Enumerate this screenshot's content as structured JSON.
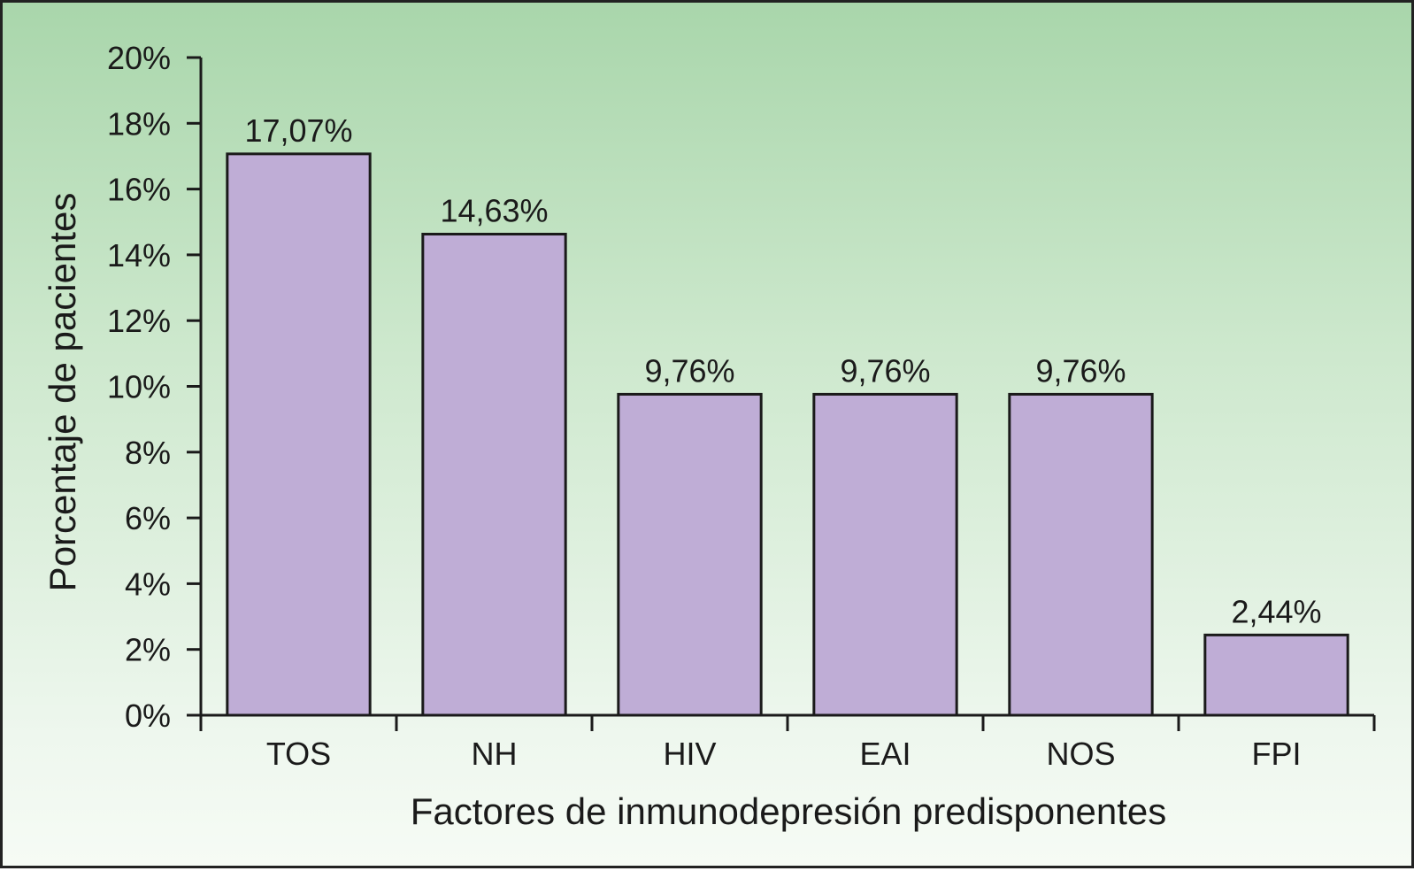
{
  "chart_data": {
    "type": "bar",
    "title": "",
    "xlabel": "Factores de inmunodepresión predisponentes",
    "ylabel": "Porcentaje de pacientes",
    "categories": [
      "TOS",
      "NH",
      "HIV",
      "EAI",
      "NOS",
      "FPI"
    ],
    "values": [
      17.07,
      14.63,
      9.76,
      9.76,
      9.76,
      2.44
    ],
    "value_labels": [
      "17,07%",
      "14,63%",
      "9,76%",
      "9,76%",
      "9,76%",
      "2,44%"
    ],
    "ylim": [
      0,
      20
    ],
    "yticks": [
      0,
      2,
      4,
      6,
      8,
      10,
      12,
      14,
      16,
      18,
      20
    ],
    "ytick_labels": [
      "0%",
      "2%",
      "4%",
      "6%",
      "8%",
      "10%",
      "12%",
      "14%",
      "16%",
      "18%",
      "20%"
    ],
    "grid": false,
    "legend": "none",
    "colors": {
      "bar_fill": "#bfadd6",
      "bar_stroke": "#1a1a1a",
      "axis": "#1a1a1a"
    }
  }
}
